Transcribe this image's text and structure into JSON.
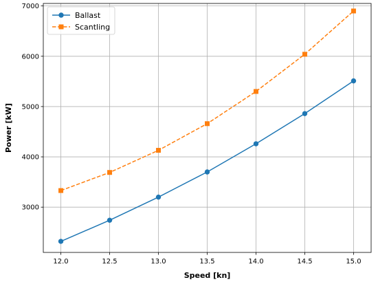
{
  "chart_data": {
    "type": "line",
    "x": [
      12.0,
      12.5,
      13.0,
      13.5,
      14.0,
      14.5,
      15.0
    ],
    "x_ticks": [
      "12.0",
      "12.5",
      "13.0",
      "13.5",
      "14.0",
      "14.5",
      "15.0"
    ],
    "y_ticks": [
      "3000",
      "4000",
      "5000",
      "6000",
      "7000"
    ],
    "xlabel": "Speed [kn]",
    "ylabel": "Power [kW]",
    "xlim": [
      11.82,
      15.18
    ],
    "ylim": [
      2100,
      7050
    ],
    "grid": true,
    "legend_position": "top-left",
    "series": [
      {
        "name": "Ballast",
        "values": [
          2320,
          2740,
          3200,
          3700,
          4260,
          4860,
          5510
        ],
        "color": "#1f77b4",
        "marker": "circle",
        "line_style": "solid"
      },
      {
        "name": "Scantling",
        "values": [
          3330,
          3690,
          4130,
          4660,
          5300,
          6040,
          6900
        ],
        "color": "#ff7f0e",
        "marker": "square",
        "line_style": "dashed"
      }
    ]
  }
}
